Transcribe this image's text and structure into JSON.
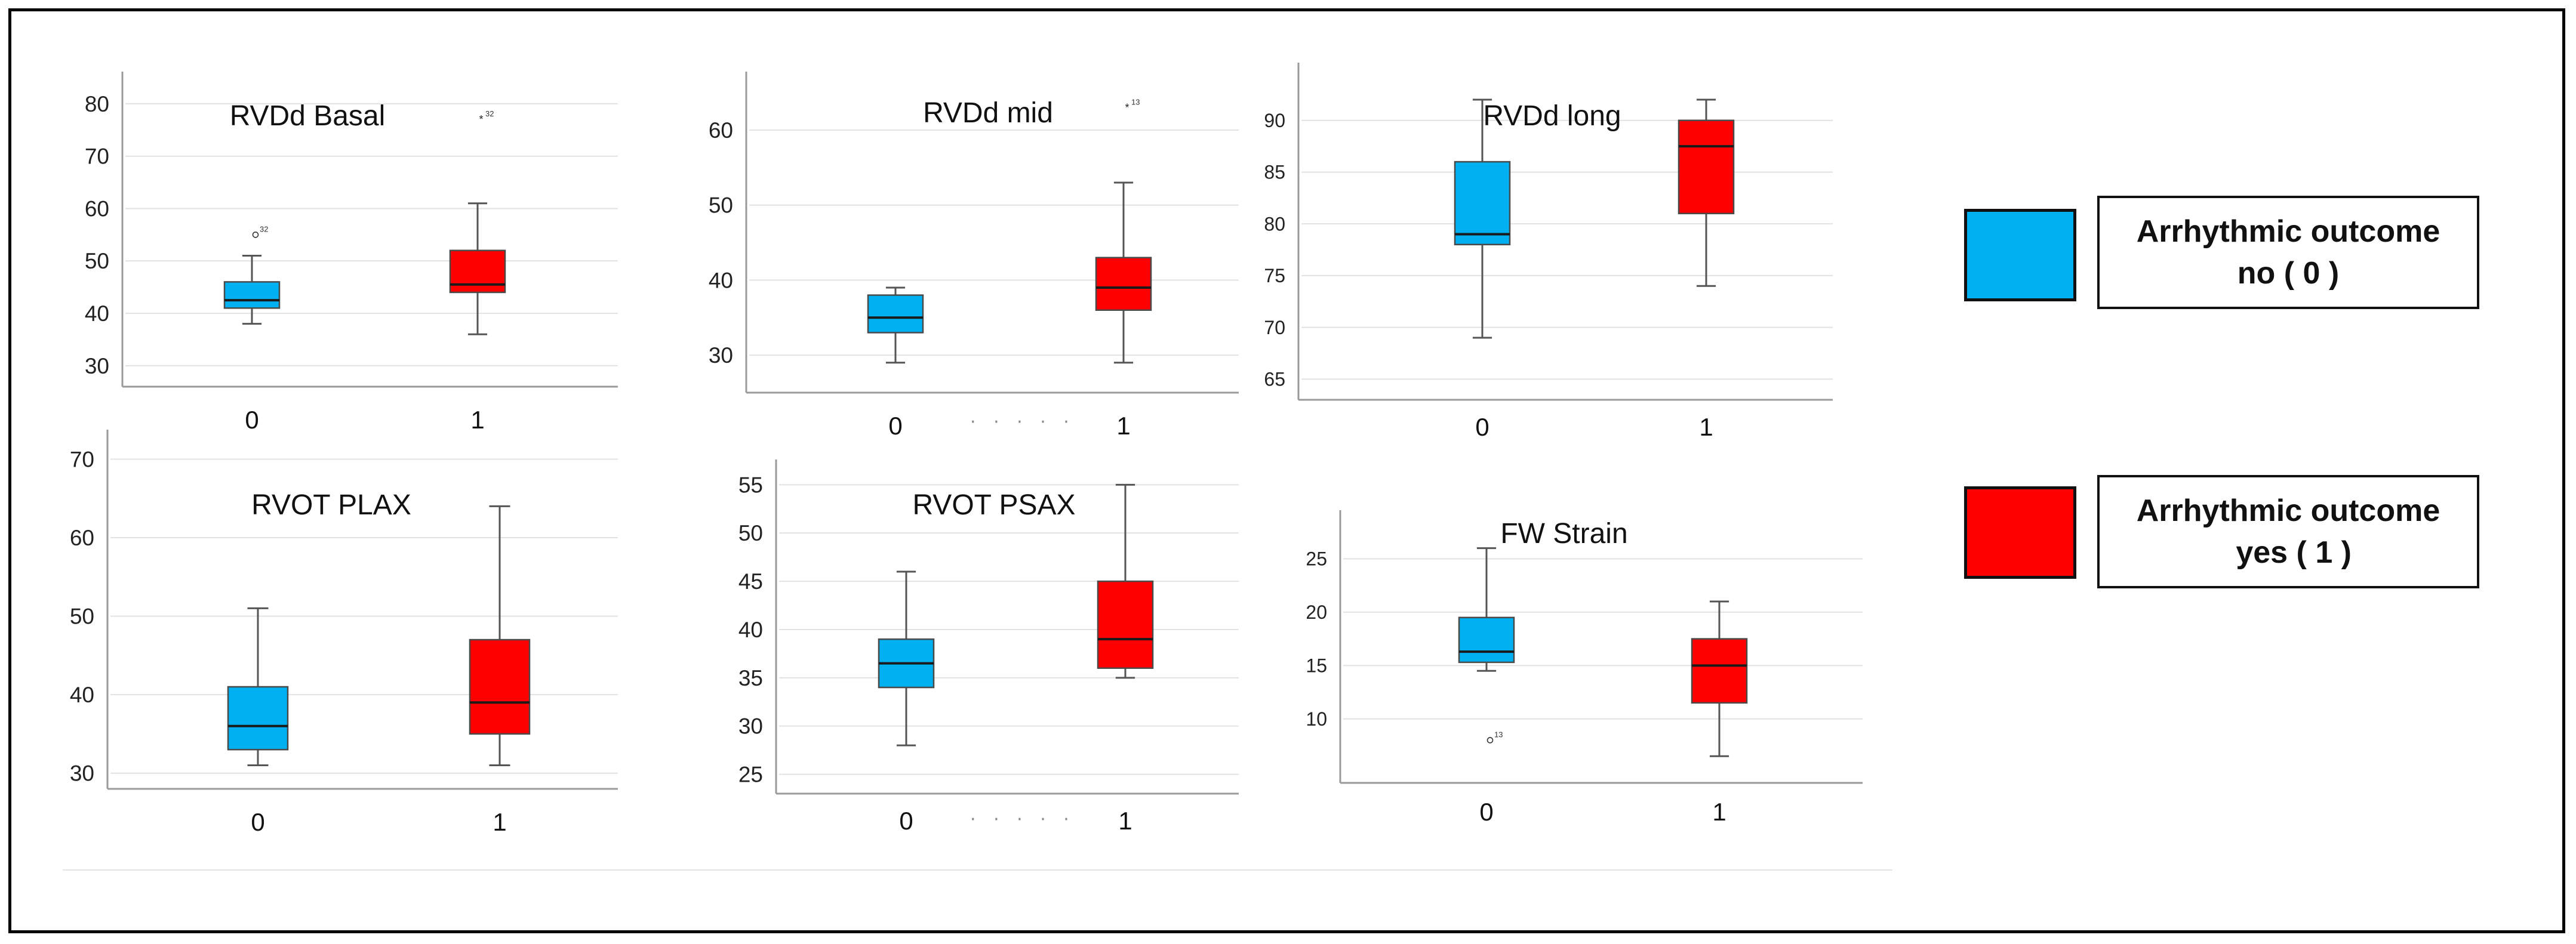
{
  "colors": {
    "no": "#00b0f0",
    "yes": "#ff0000",
    "axis": "#9a9a9a",
    "grid": "#e2e2e2",
    "median": "#1a1a1a",
    "whisker": "#555555"
  },
  "legend": {
    "no": {
      "line1": "Arrhythmic outcome",
      "line2": "no ( 0 )"
    },
    "yes": {
      "line1": "Arrhythmic outcome",
      "line2": "yes ( 1 )"
    }
  },
  "separators": {
    "dots": "· · · · ·"
  },
  "chart_data": [
    {
      "type": "box",
      "title": "RVDd Basal",
      "categories": [
        "0",
        "1"
      ],
      "yticks": [
        30,
        40,
        50,
        60,
        70,
        80
      ],
      "ylim": [
        26,
        85
      ],
      "boxes": [
        {
          "group": "0",
          "min": 38,
          "q1": 41,
          "median": 42.5,
          "q3": 46,
          "max": 51,
          "outliers": [
            {
              "value": 55,
              "marker": "circle",
              "label": "32"
            }
          ]
        },
        {
          "group": "1",
          "min": 36,
          "q1": 44,
          "median": 45.5,
          "q3": 52,
          "max": 61,
          "outliers": [
            {
              "value": 77,
              "marker": "star",
              "label": "32"
            }
          ]
        }
      ]
    },
    {
      "type": "box",
      "title": "RVDd mid",
      "categories": [
        "0",
        "1"
      ],
      "yticks": [
        30,
        40,
        50,
        60
      ],
      "ylim": [
        25,
        67
      ],
      "boxes": [
        {
          "group": "0",
          "min": 29,
          "q1": 33,
          "median": 35,
          "q3": 38,
          "max": 39,
          "outliers": []
        },
        {
          "group": "1",
          "min": 29,
          "q1": 36,
          "median": 39,
          "q3": 43,
          "max": 53,
          "outliers": [
            {
              "value": 63,
              "marker": "star",
              "label": "13"
            }
          ]
        }
      ]
    },
    {
      "type": "box",
      "title": "RVDd long",
      "categories": [
        "0",
        "1"
      ],
      "yticks": [
        65,
        70,
        75,
        80,
        85,
        90
      ],
      "ylim": [
        63,
        95
      ],
      "boxes": [
        {
          "group": "0",
          "min": 69,
          "q1": 78,
          "median": 79,
          "q3": 86,
          "max": 92,
          "outliers": []
        },
        {
          "group": "1",
          "min": 74,
          "q1": 81,
          "median": 87.5,
          "q3": 90,
          "max": 92,
          "outliers": []
        }
      ]
    },
    {
      "type": "box",
      "title": "RVOT PLAX",
      "categories": [
        "0",
        "1"
      ],
      "yticks": [
        30,
        40,
        50,
        60,
        70
      ],
      "ylim": [
        28,
        73
      ],
      "boxes": [
        {
          "group": "0",
          "min": 31,
          "q1": 33,
          "median": 36,
          "q3": 41,
          "max": 51,
          "outliers": []
        },
        {
          "group": "1",
          "min": 31,
          "q1": 35,
          "median": 39,
          "q3": 47,
          "max": 64,
          "outliers": []
        }
      ]
    },
    {
      "type": "box",
      "title": "RVOT PSAX",
      "categories": [
        "0",
        "1"
      ],
      "yticks": [
        25,
        30,
        35,
        40,
        45,
        50,
        55
      ],
      "ylim": [
        23,
        57
      ],
      "boxes": [
        {
          "group": "0",
          "min": 28,
          "q1": 34,
          "median": 36.5,
          "q3": 39,
          "max": 46,
          "outliers": []
        },
        {
          "group": "1",
          "min": 35,
          "q1": 36,
          "median": 39,
          "q3": 45,
          "max": 55,
          "outliers": []
        }
      ]
    },
    {
      "type": "box",
      "title": "FW Strain",
      "categories": [
        "0",
        "1"
      ],
      "yticks": [
        10,
        15,
        20,
        25
      ],
      "ylim": [
        4,
        29
      ],
      "boxes": [
        {
          "group": "0",
          "min": 14.5,
          "q1": 15.3,
          "median": 16.3,
          "q3": 19.5,
          "max": 26,
          "outliers": [
            {
              "value": 8,
              "marker": "circle",
              "label": "13"
            }
          ]
        },
        {
          "group": "1",
          "min": 6.5,
          "q1": 11.5,
          "median": 15,
          "q3": 17.5,
          "max": 21,
          "outliers": []
        }
      ]
    }
  ]
}
